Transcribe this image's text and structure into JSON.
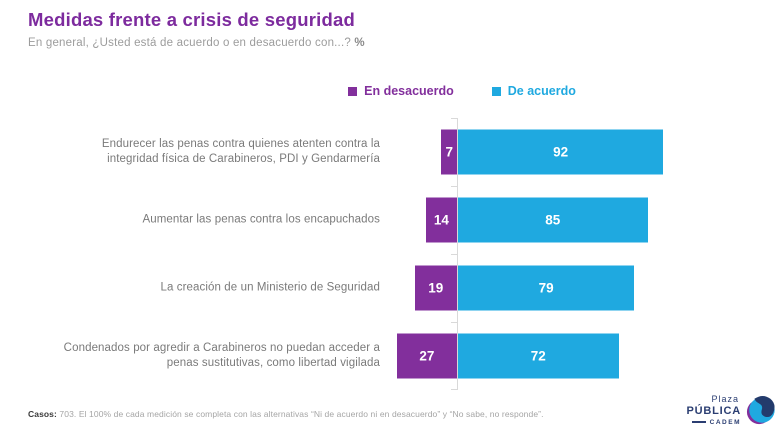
{
  "header": {
    "title": "Medidas frente a crisis de seguridad",
    "subtitle": "En general, ¿Usted está de acuerdo o en desacuerdo con...? ",
    "subtitle_suffix": "%"
  },
  "chart_data": {
    "type": "bar",
    "orientation": "horizontal",
    "diverging": true,
    "title": "Medidas frente a crisis de seguridad",
    "subtitle": "En general, ¿Usted está de acuerdo o en desacuerdo con...? %",
    "categories": [
      "Endurecer las penas contra quienes atenten contra la integridad física de Carabineros, PDI y Gendarmería",
      "Aumentar las penas contra los encapuchados",
      "La creación de un Ministerio de Seguridad",
      "Condenados por agredir a Carabineros no puedan acceder a penas sustitutivas, como libertad vigilada"
    ],
    "series": [
      {
        "name": "En desacuerdo",
        "color": "#822F9C",
        "values": [
          7,
          14,
          19,
          27
        ]
      },
      {
        "name": "De acuerdo",
        "color": "#1FA9E0",
        "values": [
          92,
          85,
          79,
          72
        ]
      }
    ],
    "xlim": [
      0,
      100
    ],
    "value_labels": "inside-white-bold",
    "legend_position": "top-center",
    "grid": false
  },
  "footer": {
    "note_prefix": "Casos:",
    "note_text": " 703. El 100% de cada medición se completa con las alternativas “Ni de acuerdo ni en desacuerdo” y “No sabe, no responde”."
  },
  "logo": {
    "line1": "Plaza",
    "line2": "PÚBLICA",
    "line3": "CADEM"
  },
  "colors": {
    "purple": "#822F9C",
    "cyan": "#1FA9E0",
    "navy": "#2B3E72",
    "axis": "#D9D9D9"
  }
}
